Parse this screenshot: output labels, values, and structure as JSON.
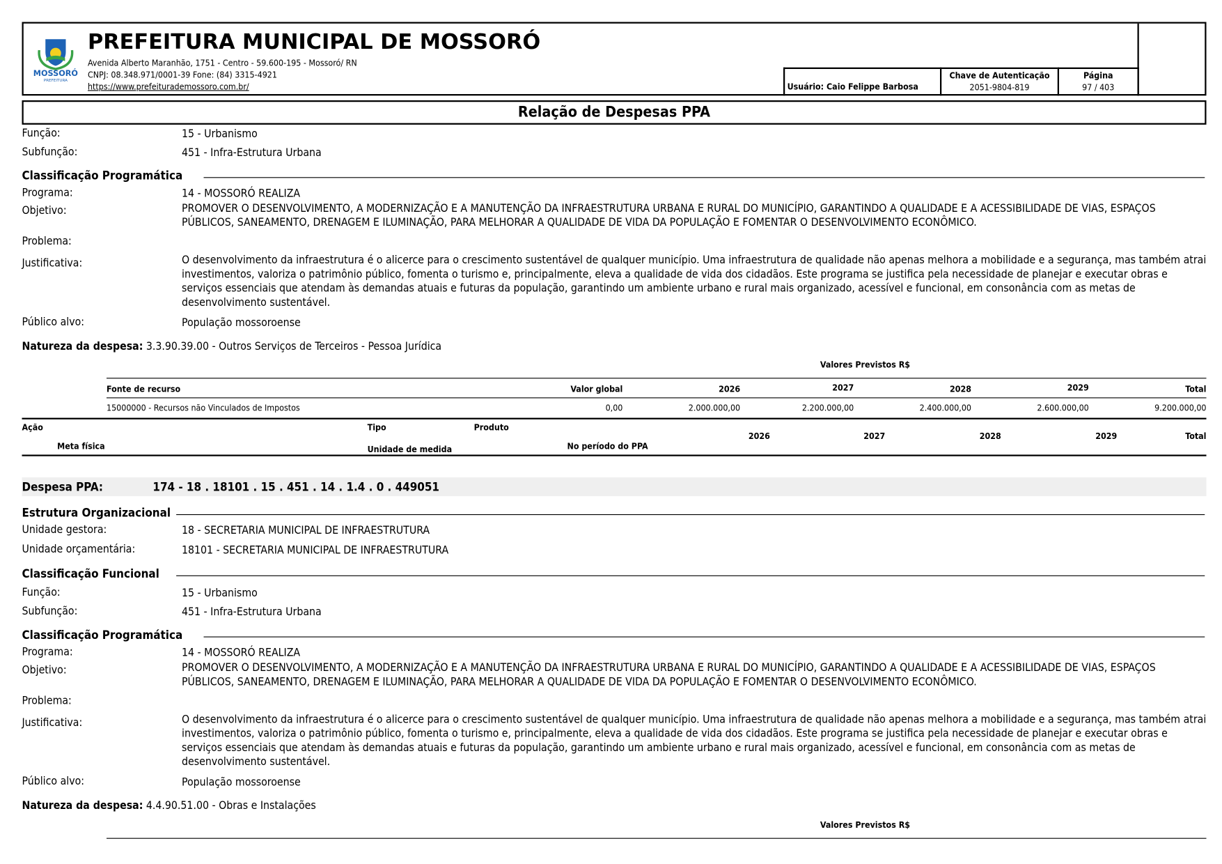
{
  "header": {
    "title": "PREFEITURA MUNICIPAL DE MOSSORÓ",
    "address": "Avenida Alberto Maranhão, 1751 - Centro - 59.600-195 - Mossoró/ RN",
    "contact": "CNPJ: 08.348.971/0001-39 Fone: (84) 3315-4921",
    "website": "https://www.prefeiturademossoro.com.br/",
    "logo_text": "MOSSORÓ",
    "logo_subtext": "PREFEITURA",
    "user_label": "Usuário: Caio Felippe Barbosa",
    "auth_label": "Chave de Autenticação",
    "auth_value": "2051-9804-819",
    "page_label": "Página",
    "page_value": "97 / 403"
  },
  "report_title": "Relação de Despesas PPA",
  "block1": {
    "funcao_label": "Função:",
    "funcao": "15 - Urbanismo",
    "subfuncao_label": "Subfunção:",
    "subfuncao": "451 - Infra-Estrutura Urbana",
    "class_prog": "Classificação Programática",
    "programa_label": "Programa:",
    "programa": "14 - MOSSORÓ REALIZA",
    "objetivo_label": "Objetivo:",
    "objetivo": "PROMOVER O DESENVOLVIMENTO, A MODERNIZAÇÃO E A MANUTENÇÃO DA INFRAESTRUTURA URBANA E RURAL DO MUNICÍPIO, GARANTINDO A QUALIDADE E A ACESSIBILIDADE DE VIAS, ESPAÇOS PÚBLICOS, SANEAMENTO, DRENAGEM E ILUMINAÇÃO, PARA MELHORAR A QUALIDADE DE VIDA DA POPULAÇÃO E FOMENTAR O DESENVOLVIMENTO ECONÔMICO.",
    "problema_label": "Problema:",
    "justificativa_label": "Justificativa:",
    "justificativa": "O desenvolvimento da infraestrutura é o alicerce para o crescimento sustentável de qualquer município. Uma infraestrutura de qualidade não apenas melhora a mobilidade e a segurança, mas também atrai investimentos, valoriza o patrimônio público, fomenta o turismo e, principalmente, eleva a qualidade de vida dos cidadãos. Este programa se justifica pela necessidade de planejar e executar obras e serviços essenciais que atendam às demandas atuais e futuras da população, garantindo um ambiente urbano e rural mais organizado, acessível e funcional, em consonância com as metas de desenvolvimento sustentável.",
    "publico_label": "Público alvo:",
    "publico": "População mossoroense",
    "natureza_label": "Natureza da despesa:",
    "natureza": "3.3.90.39.00 - Outros Serviços de Terceiros - Pessoa Jurídica",
    "valores_label": "Valores Previstos R$",
    "fonte_headers": [
      "Fonte de recurso",
      "Valor global",
      "2026",
      "2027",
      "2028",
      "2029",
      "Total"
    ],
    "fonte_row": [
      "15000000 - Recursos não Vinculados de Impostos",
      "0,00",
      "2.000.000,00",
      "2.200.000,00",
      "2.400.000,00",
      "2.600.000,00",
      "9.200.000,00"
    ],
    "acao_headers": {
      "acao": "Ação",
      "tipo": "Tipo",
      "produto": "Produto",
      "meta": "Meta física",
      "unidade": "Unidade de medida",
      "periodo": "No período do PPA",
      "y2026": "2026",
      "y2027": "2027",
      "y2028": "2028",
      "y2029": "2029",
      "total": "Total"
    }
  },
  "block2": {
    "despesa_label": "Despesa PPA:",
    "despesa": "174 - 18 . 18101 . 15 . 451 . 14 . 1.4 . 0 . 449051",
    "estrutura": "Estrutura Organizacional",
    "gestora_label": "Unidade gestora:",
    "gestora": "18 - SECRETARIA MUNICIPAL DE INFRAESTRUTURA",
    "orcamentaria_label": "Unidade orçamentária:",
    "orcamentaria": "18101 - SECRETARIA MUNICIPAL DE INFRAESTRUTURA",
    "class_func": "Classificação Funcional",
    "funcao_label": "Função:",
    "funcao": "15 - Urbanismo",
    "subfuncao_label": "Subfunção:",
    "subfuncao": "451 - Infra-Estrutura Urbana",
    "class_prog": "Classificação Programática",
    "programa_label": "Programa:",
    "programa": "14 - MOSSORÓ REALIZA",
    "objetivo_label": "Objetivo:",
    "objetivo": "PROMOVER O DESENVOLVIMENTO, A MODERNIZAÇÃO E A MANUTENÇÃO DA INFRAESTRUTURA URBANA E RURAL DO MUNICÍPIO, GARANTINDO A QUALIDADE E A ACESSIBILIDADE DE VIAS, ESPAÇOS PÚBLICOS, SANEAMENTO, DRENAGEM E ILUMINAÇÃO, PARA MELHORAR A QUALIDADE DE VIDA DA POPULAÇÃO E FOMENTAR O DESENVOLVIMENTO ECONÔMICO.",
    "problema_label": "Problema:",
    "justificativa_label": "Justificativa:",
    "justificativa": "O desenvolvimento da infraestrutura é o alicerce para o crescimento sustentável de qualquer município. Uma infraestrutura de qualidade não apenas melhora a mobilidade e a segurança, mas também atrai investimentos, valoriza o patrimônio público, fomenta o turismo e, principalmente, eleva a qualidade de vida dos cidadãos. Este programa se justifica pela necessidade de planejar e executar obras e serviços essenciais que atendam às demandas atuais e futuras da população, garantindo um ambiente urbano e rural mais organizado, acessível e funcional, em consonância com as metas de desenvolvimento sustentável.",
    "publico_label": "Público alvo:",
    "publico": "População mossoroense",
    "natureza_label": "Natureza da despesa:",
    "natureza": "4.4.90.51.00 - Obras e Instalações",
    "valores_label": "Valores Previstos R$"
  }
}
